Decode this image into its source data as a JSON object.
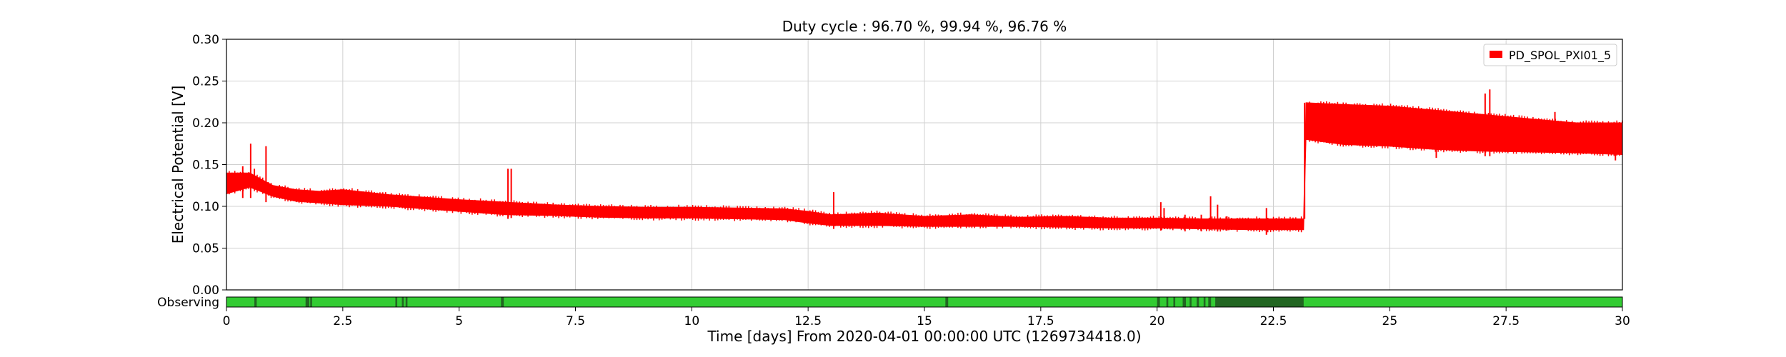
{
  "chart_data": {
    "type": "line",
    "title": "Duty cycle : 96.70 %, 99.94 %, 96.76 %",
    "xlabel": "Time [days] From 2020-04-01 00:00:00 UTC (1269734418.0)",
    "ylabel": "Electrical Potential [V]",
    "xlim": [
      0,
      30
    ],
    "ylim": [
      0,
      0.3
    ],
    "xticks": [
      0,
      2.5,
      5,
      7.5,
      10,
      12.5,
      15,
      17.5,
      20,
      22.5,
      25,
      27.5,
      30
    ],
    "xtick_labels": [
      "0",
      "2.5",
      "5",
      "7.5",
      "10",
      "12.5",
      "15",
      "17.5",
      "20",
      "22.5",
      "25",
      "27.5",
      "30"
    ],
    "yticks": [
      0,
      0.05,
      0.1,
      0.15,
      0.2,
      0.25,
      0.3
    ],
    "ytick_labels": [
      "0.00",
      "0.05",
      "0.10",
      "0.15",
      "0.20",
      "0.25",
      "0.30"
    ],
    "grid": true,
    "legend_position": "top-right",
    "series": [
      {
        "name": "PD_SPOL_PXI01_5",
        "color": "#ff0000",
        "x": [
          0,
          0.5,
          1,
          1.5,
          2,
          2.5,
          3,
          3.5,
          4,
          5,
          6,
          7,
          8,
          9,
          10,
          11,
          12,
          12.5,
          13,
          14,
          15,
          16,
          17,
          18,
          19,
          20,
          21,
          22,
          23.15,
          23.2,
          24,
          25,
          26,
          27,
          28,
          29,
          30
        ],
        "y_min": [
          0.115,
          0.123,
          0.112,
          0.106,
          0.104,
          0.102,
          0.101,
          0.1,
          0.098,
          0.094,
          0.09,
          0.089,
          0.087,
          0.086,
          0.086,
          0.085,
          0.084,
          0.08,
          0.077,
          0.077,
          0.076,
          0.076,
          0.076,
          0.075,
          0.074,
          0.074,
          0.073,
          0.072,
          0.072,
          0.18,
          0.174,
          0.172,
          0.168,
          0.166,
          0.165,
          0.164,
          0.162
        ],
        "y_max": [
          0.14,
          0.14,
          0.125,
          0.12,
          0.118,
          0.12,
          0.117,
          0.114,
          0.112,
          0.108,
          0.105,
          0.102,
          0.1,
          0.099,
          0.099,
          0.098,
          0.097,
          0.094,
          0.09,
          0.092,
          0.088,
          0.09,
          0.087,
          0.088,
          0.086,
          0.086,
          0.085,
          0.085,
          0.085,
          0.224,
          0.222,
          0.22,
          0.215,
          0.21,
          0.205,
          0.2,
          0.2
        ],
        "spikes": [
          {
            "x": 0.35,
            "lo": 0.11,
            "hi": 0.148
          },
          {
            "x": 0.52,
            "lo": 0.11,
            "hi": 0.175
          },
          {
            "x": 0.6,
            "lo": 0.12,
            "hi": 0.145
          },
          {
            "x": 0.85,
            "lo": 0.105,
            "hi": 0.172
          },
          {
            "x": 6.05,
            "lo": 0.085,
            "hi": 0.145
          },
          {
            "x": 6.12,
            "lo": 0.086,
            "hi": 0.145
          },
          {
            "x": 13.05,
            "lo": 0.073,
            "hi": 0.117
          },
          {
            "x": 20.08,
            "lo": 0.071,
            "hi": 0.105
          },
          {
            "x": 20.15,
            "lo": 0.075,
            "hi": 0.098
          },
          {
            "x": 20.6,
            "lo": 0.07,
            "hi": 0.09
          },
          {
            "x": 20.95,
            "lo": 0.07,
            "hi": 0.09
          },
          {
            "x": 21.15,
            "lo": 0.072,
            "hi": 0.112
          },
          {
            "x": 21.3,
            "lo": 0.07,
            "hi": 0.102
          },
          {
            "x": 21.5,
            "lo": 0.071,
            "hi": 0.088
          },
          {
            "x": 22.35,
            "lo": 0.066,
            "hi": 0.098
          },
          {
            "x": 26.0,
            "lo": 0.158,
            "hi": 0.18
          },
          {
            "x": 27.05,
            "lo": 0.16,
            "hi": 0.235
          },
          {
            "x": 27.15,
            "lo": 0.16,
            "hi": 0.24
          },
          {
            "x": 28.55,
            "lo": 0.17,
            "hi": 0.213
          },
          {
            "x": 29.85,
            "lo": 0.155,
            "hi": 0.198
          }
        ]
      }
    ],
    "state_bar": {
      "label": "Observing",
      "color_on": "#33cc33",
      "color_off": "#226622",
      "off_intervals": [
        [
          0.6,
          0.65
        ],
        [
          1.7,
          1.78
        ],
        [
          1.8,
          1.84
        ],
        [
          3.63,
          3.67
        ],
        [
          3.77,
          3.81
        ],
        [
          3.85,
          3.89
        ],
        [
          5.9,
          5.96
        ],
        [
          15.45,
          15.51
        ],
        [
          20.0,
          20.06
        ],
        [
          20.2,
          20.24
        ],
        [
          20.35,
          20.39
        ],
        [
          20.55,
          20.62
        ],
        [
          20.7,
          20.74
        ],
        [
          20.85,
          20.9
        ],
        [
          21.0,
          21.04
        ],
        [
          21.1,
          21.16
        ],
        [
          21.25,
          23.15
        ]
      ]
    }
  }
}
